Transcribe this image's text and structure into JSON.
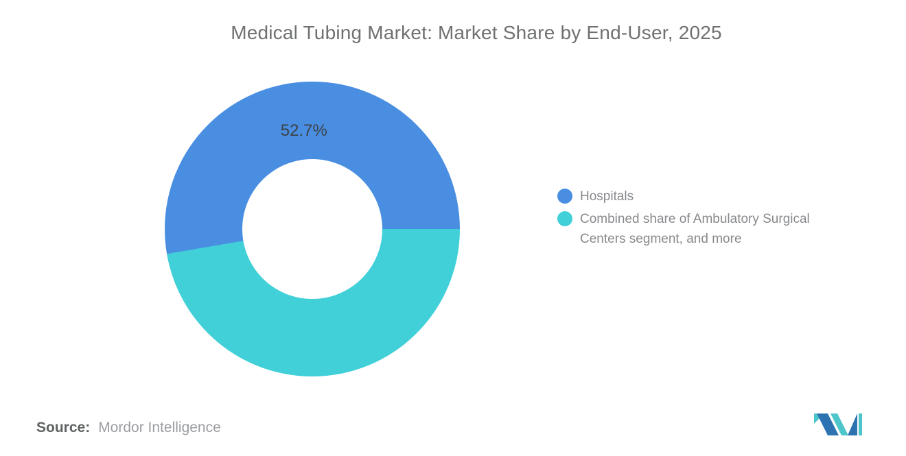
{
  "title": "Medical Tubing Market: Market Share by End-User, 2025",
  "chart_data": {
    "type": "pie",
    "subtype": "donut",
    "title": "Medical Tubing Market: Market Share by End-User, 2025",
    "unit": "percent",
    "slices": [
      {
        "name": "Hospitals",
        "value": 52.7,
        "data_label": "52.7%",
        "color": "#4a8ee2",
        "label_visible": true
      },
      {
        "name": "Combined share of Ambulatory Surgical Centers segment, and more",
        "value": 47.3,
        "data_label": "",
        "color": "#41d0d8",
        "label_visible": false
      }
    ],
    "start_angle_deg": 90,
    "sweep": "first slice starts at 3 o'clock and sweeps counter-clockwise over the top",
    "inner_radius_pct": 47,
    "legend_position": "right",
    "grid": false
  },
  "legend": {
    "items": [
      {
        "label": "Hospitals",
        "lines": [
          "Hospitals"
        ],
        "color": "#4a8ee2"
      },
      {
        "label": "Combined share of Ambulatory Surgical Centers segment, and more",
        "lines": [
          "Combined share of Ambulatory Surgical",
          "Centers segment, and more"
        ],
        "color": "#41d0d8"
      }
    ]
  },
  "footer": {
    "source_label": "Source:",
    "source_value": "Mordor Intelligence"
  },
  "logo": {
    "alt": "Mordor Intelligence logo",
    "blue": "#2d73b2",
    "teal": "#4cc5cb"
  }
}
